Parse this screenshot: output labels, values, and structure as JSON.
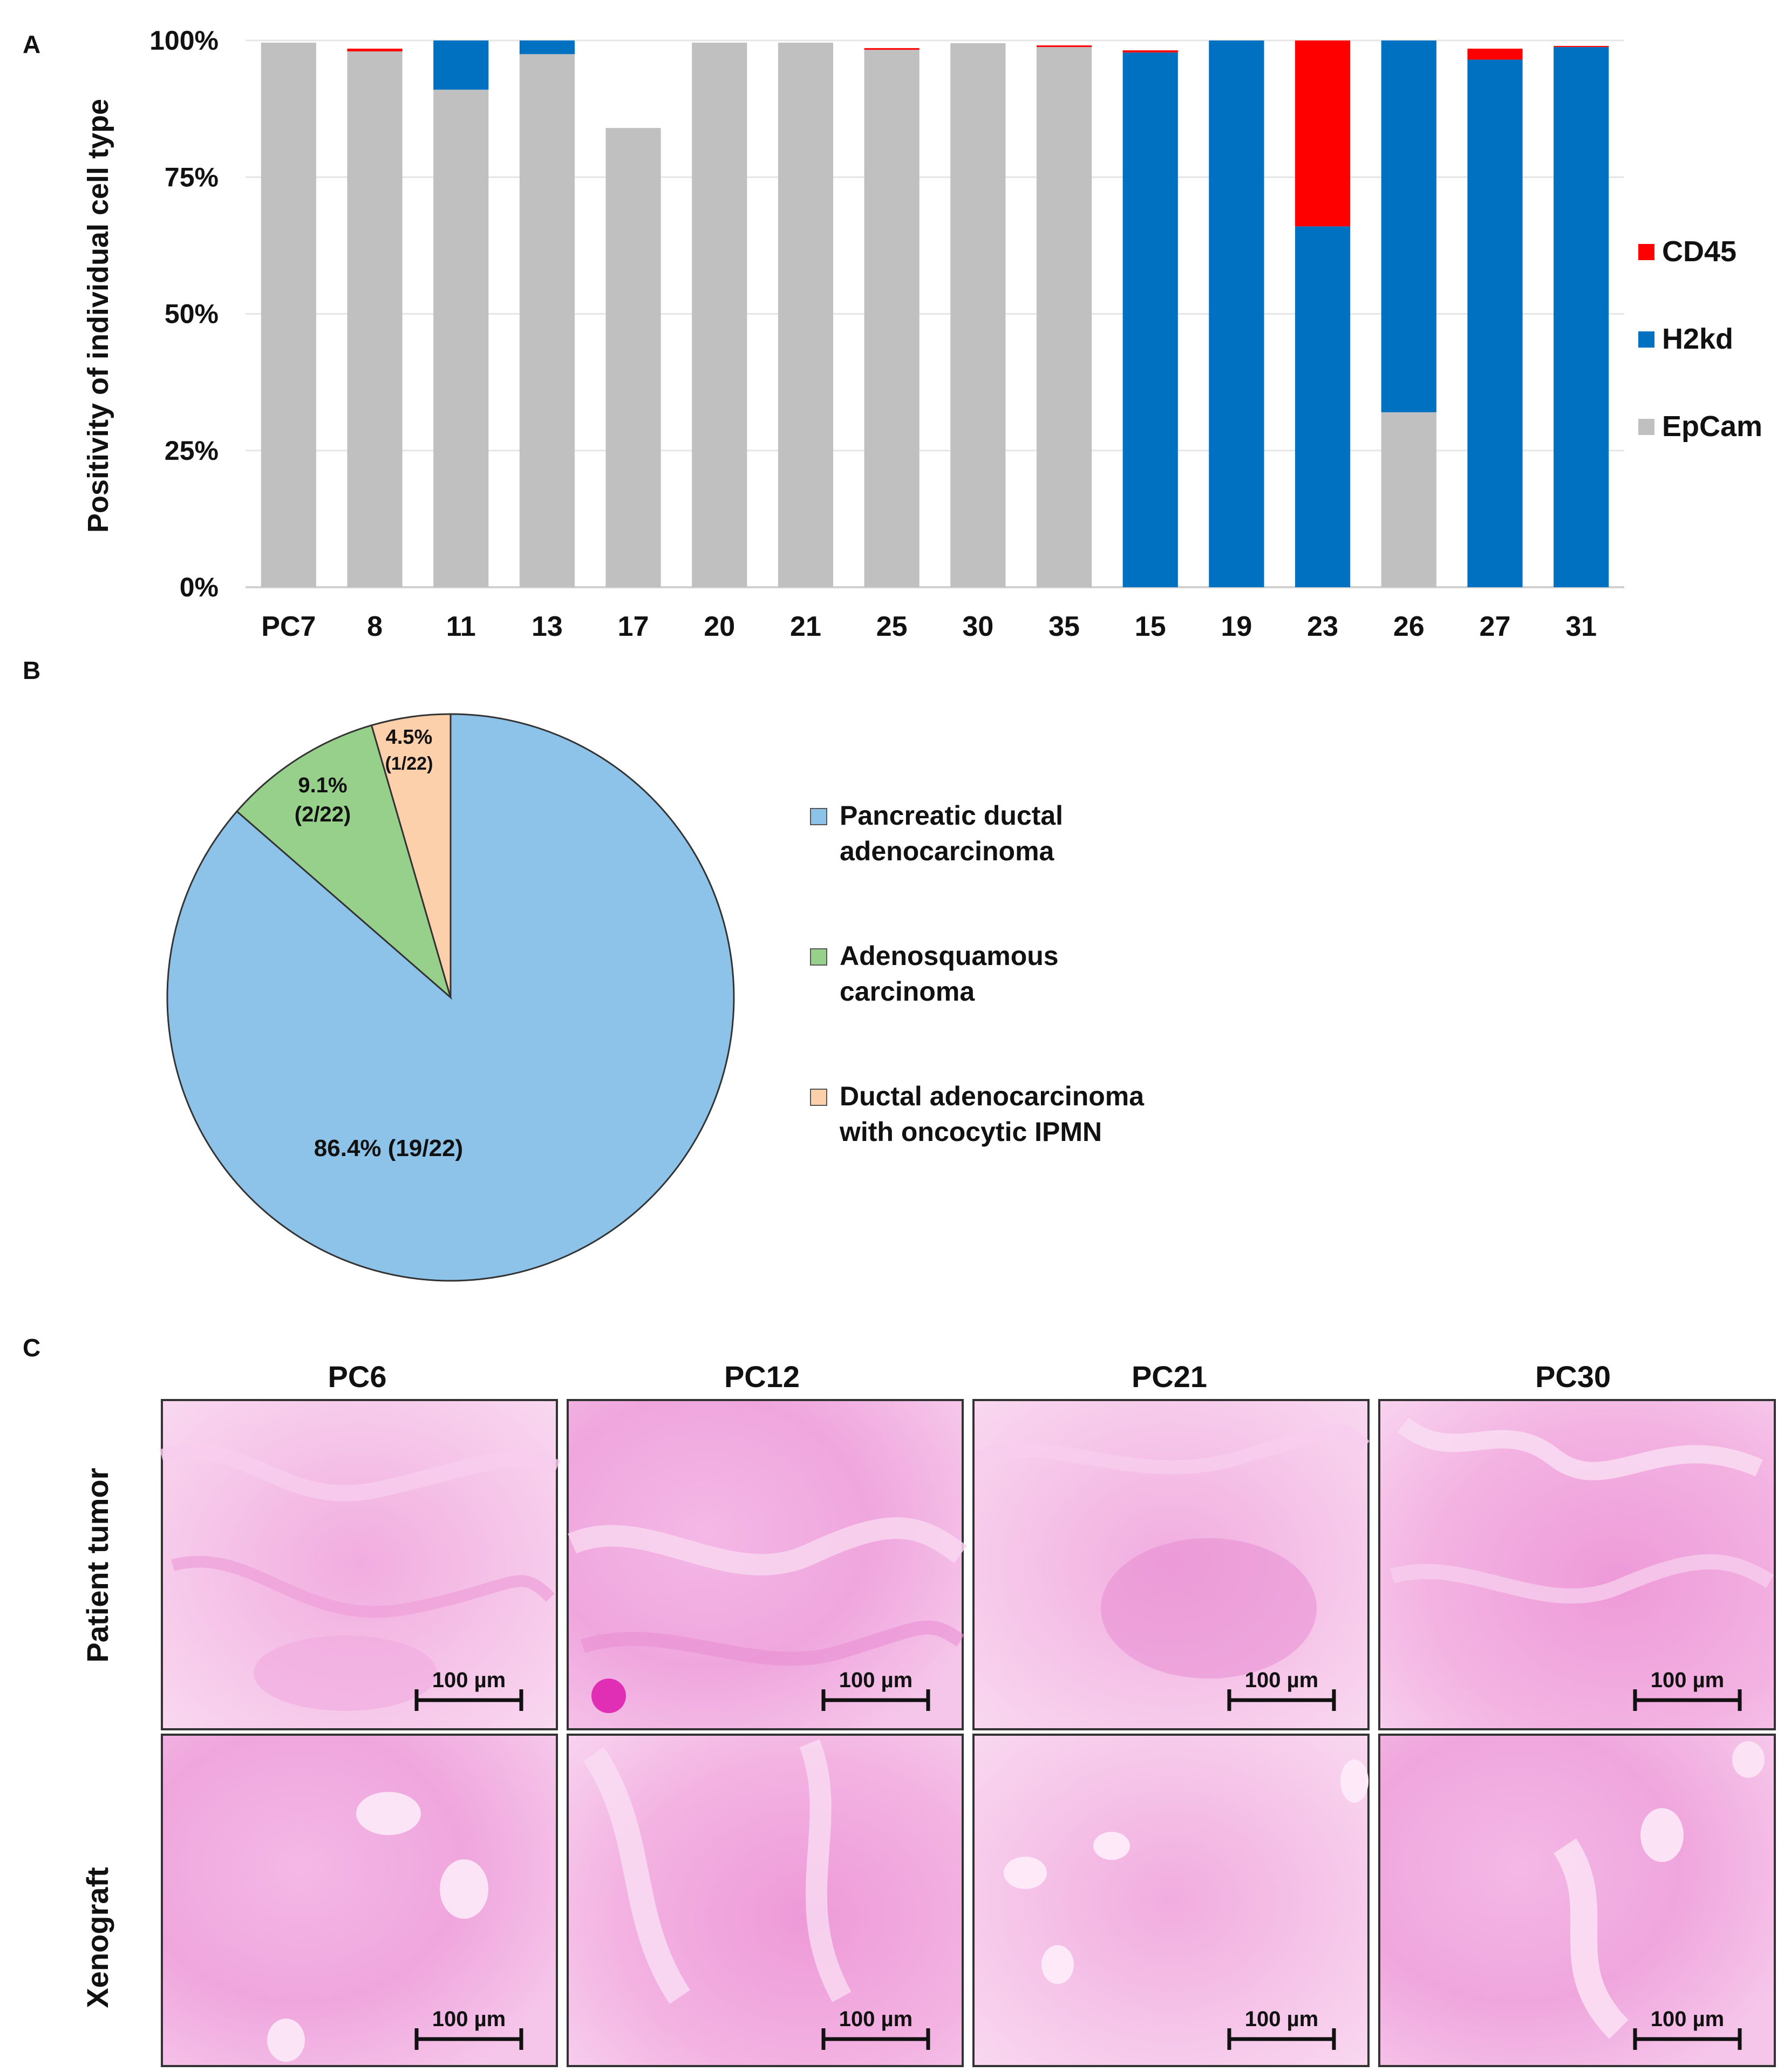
{
  "panels": {
    "a": "A",
    "b": "B",
    "c": "C"
  },
  "chart_data": [
    {
      "type": "bar",
      "stacked": true,
      "title": "",
      "xlabel": "",
      "ylabel": "Positivity of individual cell type",
      "ylim": [
        0,
        100
      ],
      "yticks": [
        0,
        25,
        50,
        75,
        100
      ],
      "ytick_labels": [
        "0%",
        "25%",
        "50%",
        "75%",
        "100%"
      ],
      "categories": [
        "PC7",
        "8",
        "11",
        "13",
        "17",
        "20",
        "21",
        "25",
        "30",
        "35",
        "15",
        "19",
        "23",
        "26",
        "27",
        "31"
      ],
      "series": [
        {
          "name": "EpCam",
          "color": "#c0c0c0",
          "values": [
            99.6,
            98,
            91,
            97.5,
            84,
            99.6,
            99.6,
            98.3,
            99.5,
            98.8,
            0,
            0,
            0,
            32,
            0,
            0
          ]
        },
        {
          "name": "H2kd",
          "color": "#0070c0",
          "values": [
            0,
            0,
            9,
            2.5,
            0,
            0,
            0,
            0,
            0,
            0,
            97.8,
            100,
            66,
            68,
            96.5,
            98.8
          ]
        },
        {
          "name": "CD45",
          "color": "#ff0000",
          "values": [
            0,
            0.5,
            0,
            0,
            0,
            0,
            0,
            0.3,
            0,
            0.3,
            0.4,
            0,
            34,
            0,
            2,
            0.2
          ]
        }
      ],
      "legend_order": [
        "CD45",
        "H2kd",
        "EpCam"
      ],
      "legend": "right",
      "grid": true
    },
    {
      "type": "pie",
      "slices": [
        {
          "name": "Pancreatic ductal adenocarcinoma",
          "value": 86.4,
          "label": "86.4% (19/22)",
          "color": "#8dc3e8"
        },
        {
          "name": "Adenosquamous carcinoma",
          "value": 9.1,
          "label_pct": "9.1%",
          "label_count": "(2/22)",
          "color": "#97d08a"
        },
        {
          "name": "Ductal adenocarcinoma with oncocytic IPMN",
          "value": 4.5,
          "label_pct": "4.5%",
          "label_count": "(1/22)",
          "color": "#fdd0ac"
        }
      ],
      "legend": [
        {
          "line1": "Pancreatic ductal",
          "line2": "adenocarcinoma",
          "color": "#8dc3e8"
        },
        {
          "line1": "Adenosquamous",
          "line2": "carcinoma",
          "color": "#97d08a"
        },
        {
          "line1": "Ductal adenocarcinoma",
          "line2": "with oncocytic IPMN",
          "color": "#fdd0ac"
        }
      ]
    }
  ],
  "histology": {
    "columns": [
      "PC6",
      "PC12",
      "PC21",
      "PC30"
    ],
    "rows": [
      "Patient tumor",
      "Xenograft"
    ],
    "scale_bar": "100 µm"
  }
}
